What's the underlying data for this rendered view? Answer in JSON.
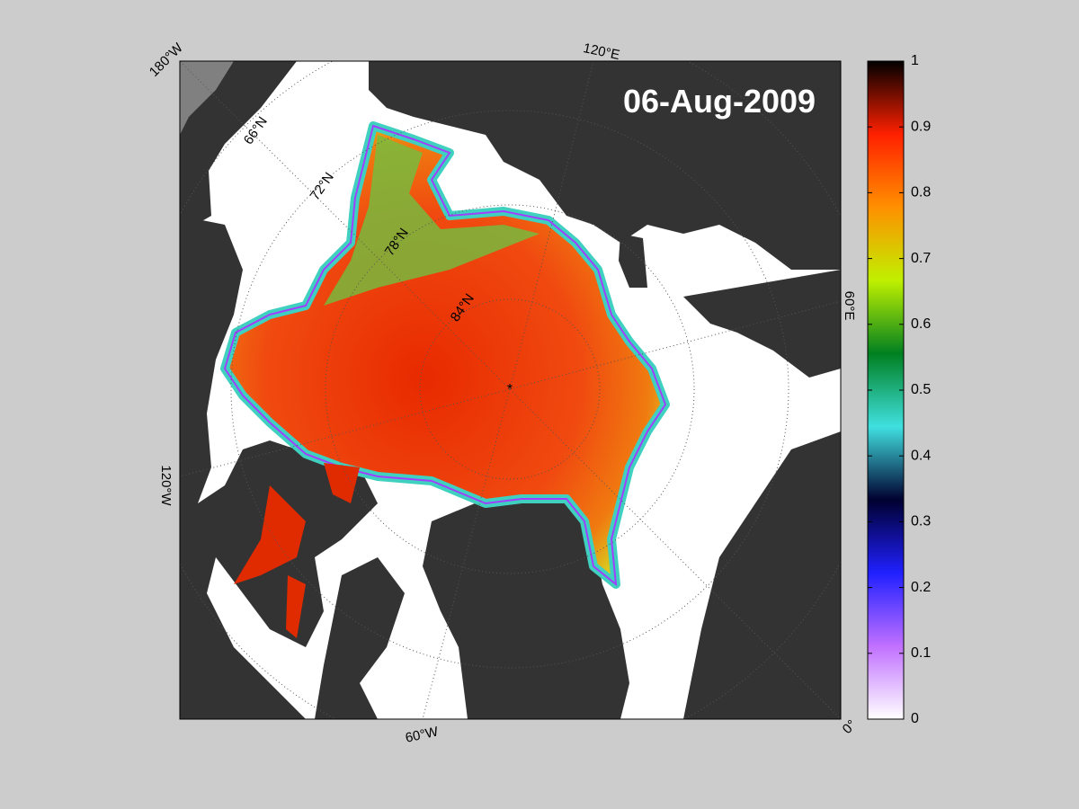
{
  "map": {
    "date": "06-Aug-2009",
    "longitude_labels": [
      "180°W",
      "120°E",
      "60°E",
      "0°",
      "60°W",
      "120°W"
    ],
    "latitude_labels": [
      "66°N",
      "72°N",
      "78°N",
      "84°N"
    ]
  },
  "colorbar": {
    "range": [
      0,
      1
    ],
    "ticks": [
      0,
      0.1,
      0.2,
      0.3,
      0.4,
      0.5,
      0.6,
      0.7,
      0.8,
      0.9,
      1
    ],
    "colors": [
      "#ffffff",
      "#c070ff",
      "#2020ff",
      "#000030",
      "#40e0e0",
      "#008020",
      "#c0f000",
      "#ff9000",
      "#ff2000",
      "#000000"
    ]
  }
}
